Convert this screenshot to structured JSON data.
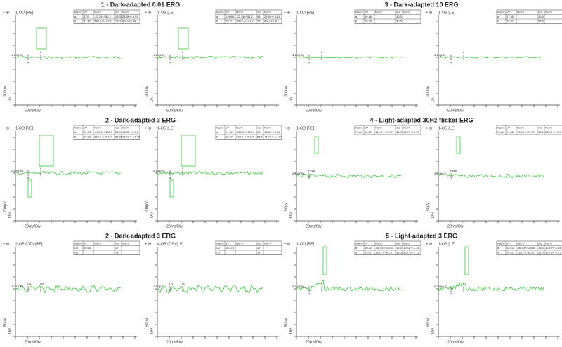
{
  "panels": [
    {
      "title": "1 - Dark-adapted 0.01 ERG",
      "y_scale": "200μV",
      "y_unit": "Div",
      "x_scale": "50ms/Div",
      "markers": [
        "a",
        "b"
      ],
      "plots": [
        {
          "eye": "1-OD [RE]",
          "trace_label": "1.1.4(RE)",
          "table": {
            "header": [
              "Name",
              "uV",
              "Norm",
              "ms",
              "Norm"
            ],
            "rows": [
              [
                "a",
                "8.07",
                "-22.39+/-51.2",
                "23.31",
                "28.88+/-3.91"
              ],
              [
                "b",
                "31.47",
                "380.2+/-143.7",
                "75.0",
                "80+/-18.88"
              ]
            ]
          }
        },
        {
          "eye": "1-OS [LE]",
          "trace_label": "1.1.4(LE)",
          "table": {
            "header": [
              "Name",
              "uV",
              "Norm",
              "ms",
              "Norm"
            ],
            "rows": [
              [
                "a",
                "0.9955",
                "-22.39+/-51.2",
                "54",
                "28.88+/-3.15"
              ],
              [
                "b",
                "19.71",
                "380.2+/-143.7",
                "77",
                "80+/-18.88"
              ]
            ]
          }
        }
      ]
    },
    {
      "title": "3 - Dark-adapted 10 ERG",
      "y_scale": "200μV",
      "y_unit": "Div",
      "x_scale": "50ms/Div",
      "markers": [
        "a",
        "b"
      ],
      "plots": [
        {
          "eye": "1-OD [RE]",
          "trace_label": "3.1.4(RE)",
          "table": {
            "header": [
              "Name",
              "uV",
              "Norm",
              "ms",
              "Norm"
            ],
            "rows": [
              [
                "a",
                "20.46",
                null,
                "30.5",
                null
              ],
              [
                "b",
                "26.29",
                null,
                "50.5",
                null
              ]
            ]
          }
        },
        {
          "eye": "1-OS [LE]",
          "trace_label": "3.1.4(LE)",
          "table": {
            "header": [
              "Name",
              "uV",
              "Norm",
              "ms",
              "Norm"
            ],
            "rows": [
              [
                "a",
                "17.55",
                null,
                "30.5",
                null
              ],
              [
                "b",
                "26.37",
                null,
                "50.5",
                null
              ]
            ]
          }
        }
      ]
    },
    {
      "title": "2 - Dark-adapted 3 ERG",
      "y_scale": "200μV",
      "y_unit": "Div",
      "x_scale": "20ms/Div",
      "markers": [
        "a",
        "b"
      ],
      "plots": [
        {
          "eye": "1-OD [RE]",
          "trace_label": "2.1.4(RE)",
          "table": {
            "header": [
              "Name",
              "uV",
              "Norm",
              "ms",
              "Norm"
            ],
            "rows": [
              [
                "a",
                "21.33",
                "-219.4+/-108.7",
                "21.5",
                "13.86+/-2.51"
              ],
              [
                "b",
                "26.93",
                "333.2+/-201.7",
                "55.88",
                "46.79+/-14.79"
              ]
            ]
          }
        },
        {
          "eye": "1-OS [LE]",
          "trace_label": "2.1.6(LE)",
          "table": {
            "header": [
              "Name",
              "uV",
              "Norm",
              "ms",
              "Norm"
            ],
            "rows": [
              [
                "a",
                "21.41",
                "-219.4+/-108.7",
                "22",
                "13.86+/-2.51"
              ],
              [
                "b",
                "22.27",
                "333.2+/-201.7",
                "56.5",
                "46.79+/-14.74"
              ]
            ]
          }
        }
      ]
    },
    {
      "title": "4 - Light-adapted 30Hz flicker ERG",
      "y_scale": "50μV",
      "y_unit": "Div",
      "x_scale": "20ms/Div",
      "markers": [
        "Peak"
      ],
      "plots": [
        {
          "eye": "1-OD [RE]",
          "trace_label": "4.1.4(RE)",
          "table": {
            "header": [
              "Name",
              "uV",
              "Norm",
              "ms",
              "Norm"
            ],
            "rows": [
              [
                "Peak",
                "13.27",
                "106.8+/-23.37",
                "31.5",
                "24.73+/-1.97"
              ]
            ]
          }
        },
        {
          "eye": "1-OS [LE]",
          "trace_label": "4.2.46(LE)",
          "table": {
            "header": [
              "Name",
              "uV",
              "Norm",
              "ms",
              "Norm"
            ],
            "rows": [
              [
                "Peak",
                "24.46",
                "106.8+/-23.37",
                "30.5",
                "24.73+/-1.97"
              ]
            ]
          }
        }
      ]
    },
    {
      "title": "2 - Dark-adapted 3 ERG",
      "y_scale": "50μV",
      "y_unit": "Div",
      "x_scale": "20ms/Div",
      "markers": [
        "O1",
        "O2"
      ],
      "plots": [
        {
          "eye": "2-OP (OD) [RE]",
          "trace_label": "2.3.1(RE)",
          "table": {
            "header": [
              "Name",
              "uV",
              "Norm",
              "ms",
              "Norm"
            ],
            "rows": [
              [
                "O2",
                "30.65",
                null,
                "17",
                null
              ],
              [
                "O1",
                null,
                null,
                "14",
                null
              ]
            ]
          }
        },
        {
          "eye": "4-OP (OS) [LE]",
          "trace_label": "2.4.1(LE)",
          "table": {
            "header": [
              "Name",
              "uV",
              "Norm",
              "ms",
              "Norm"
            ],
            "rows": [
              [
                "O2",
                "28.475",
                null,
                "17",
                null
              ],
              [
                "O1",
                null,
                null,
                "14",
                null
              ]
            ]
          }
        }
      ]
    },
    {
      "title": "5 - Light-adapted 3 ERG",
      "y_scale": "50μV",
      "y_unit": "Div",
      "x_scale": "20ms/Div",
      "markers": [
        "a",
        "b"
      ],
      "plots": [
        {
          "eye": "1-OD [RE]",
          "trace_label": "5.1.4(RE)",
          "table": {
            "header": [
              "Name",
              "uV",
              "Norm",
              "ms",
              "Norm"
            ],
            "rows": [
              [
                "a",
                "10.32",
                "-56.03+/-23.80",
                "15.3",
                "12.42+/-1.34"
              ],
              [
                "b",
                "25.97",
                "135.7+/-46.57",
                "33.57",
                "30.75+/-1.73"
              ]
            ]
          }
        },
        {
          "eye": "1-OS [LE]",
          "trace_label": "5.2.66(LE)",
          "table": {
            "header": [
              "Name",
              "uV",
              "Norm",
              "ms",
              "Norm"
            ],
            "rows": [
              [
                "a",
                "11.63",
                "-56.03+/-23.80",
                "15.5",
                "12.42+/-1.34"
              ],
              [
                "b",
                "24.82",
                "135.7+/-46.57",
                "32.57",
                "30.75+/-1.73"
              ]
            ]
          }
        }
      ]
    }
  ]
}
